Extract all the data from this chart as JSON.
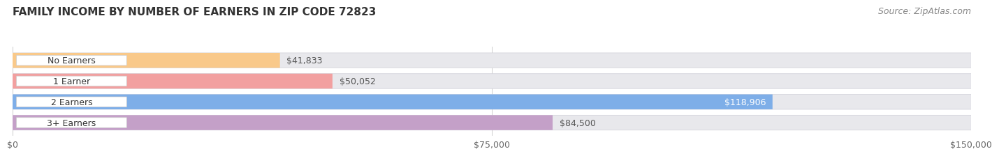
{
  "title": "FAMILY INCOME BY NUMBER OF EARNERS IN ZIP CODE 72823",
  "source": "Source: ZipAtlas.com",
  "categories": [
    "No Earners",
    "1 Earner",
    "2 Earners",
    "3+ Earners"
  ],
  "values": [
    41833,
    50052,
    118906,
    84500
  ],
  "labels": [
    "$41,833",
    "$50,052",
    "$118,906",
    "$84,500"
  ],
  "bar_colors": [
    "#f9c98a",
    "#f2a0a0",
    "#7eaee8",
    "#c4a0c8"
  ],
  "label_colors": [
    "#555555",
    "#555555",
    "#ffffff",
    "#555555"
  ],
  "x_max": 150000,
  "x_ticks": [
    0,
    75000,
    150000
  ],
  "x_tick_labels": [
    "$0",
    "$75,000",
    "$150,000"
  ],
  "background_color": "#ffffff",
  "bar_bg_color": "#e8e8ec",
  "title_fontsize": 11,
  "source_fontsize": 9,
  "label_fontsize": 9,
  "tick_fontsize": 9,
  "category_fontsize": 9
}
